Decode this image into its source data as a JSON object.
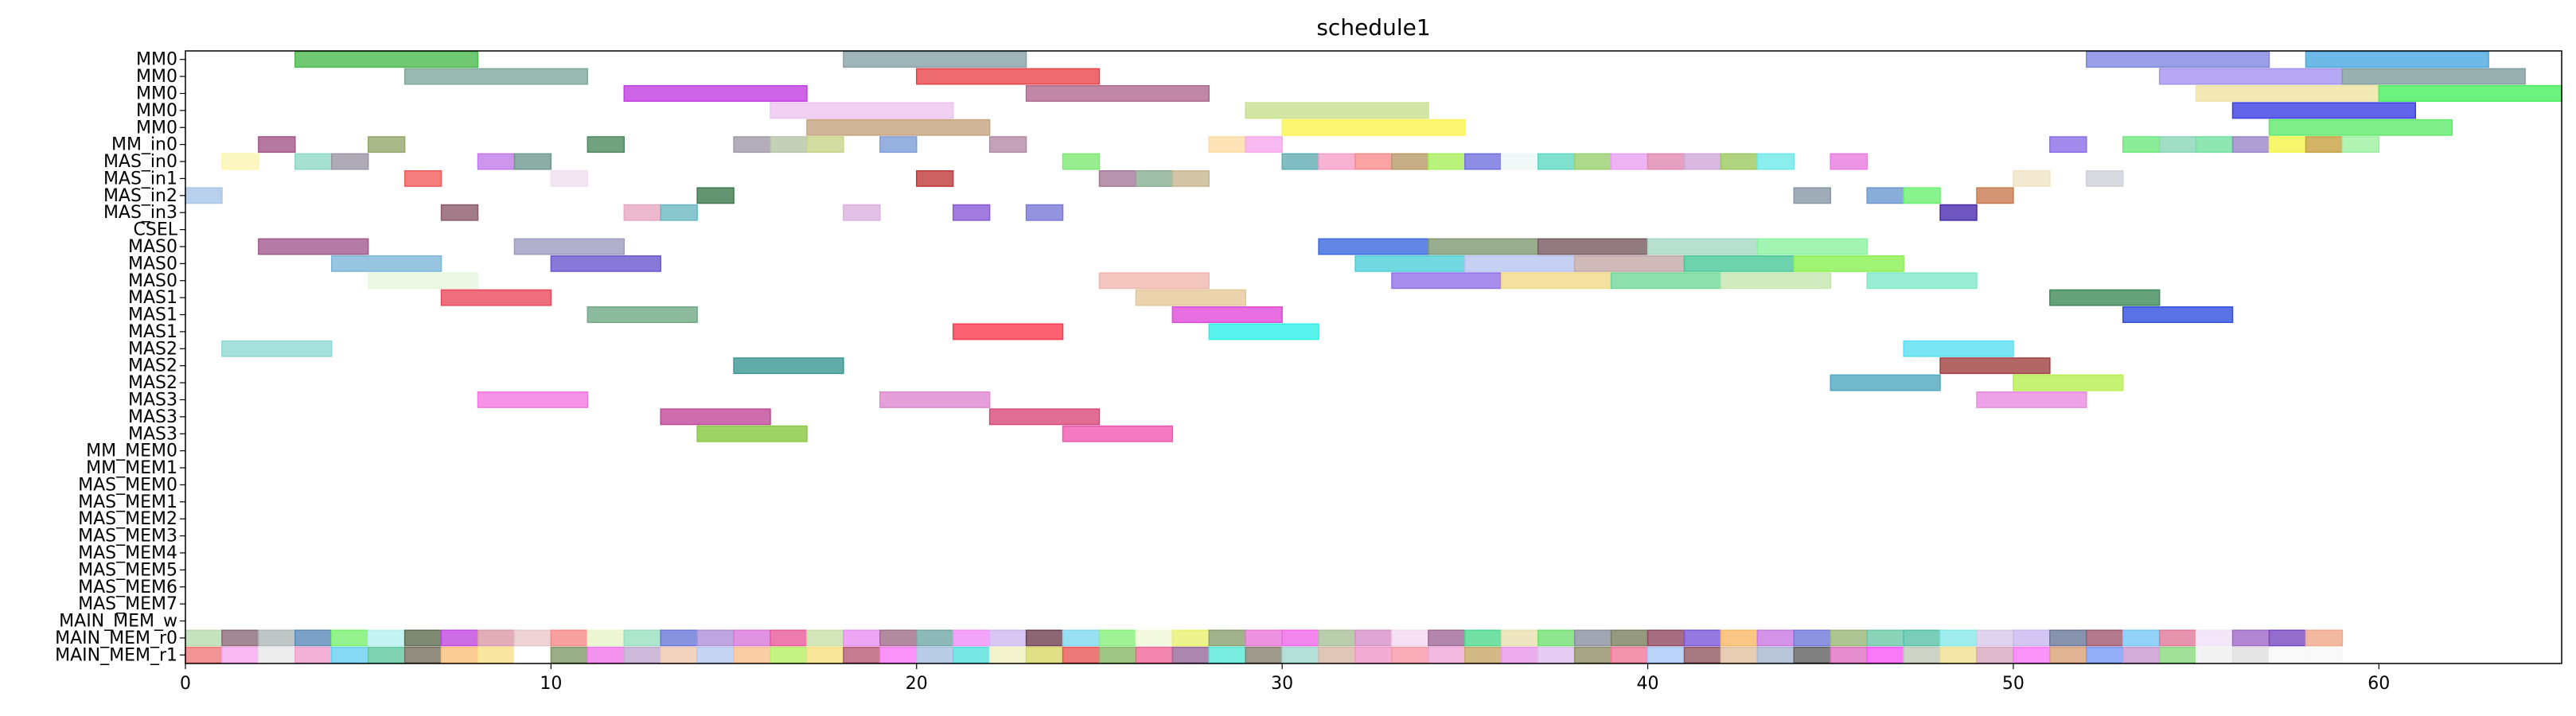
{
  "chart_data": {
    "type": "gantt",
    "title": "schedule1",
    "xlim": [
      0,
      65
    ],
    "x_ticks": [
      0,
      10,
      20,
      30,
      40,
      50,
      60
    ],
    "rows": [
      "MM0",
      "MM0",
      "MM0",
      "MM0",
      "MM0",
      "MM_in0",
      "MAS_in0",
      "MAS_in1",
      "MAS_in2",
      "MAS_in3",
      "CSEL",
      "MAS0",
      "MAS0",
      "MAS0",
      "MAS1",
      "MAS1",
      "MAS1",
      "MAS2",
      "MAS2",
      "MAS2",
      "MAS3",
      "MAS3",
      "MAS3",
      "MM_MEM0",
      "MM_MEM1",
      "MAS_MEM0",
      "MAS_MEM1",
      "MAS_MEM2",
      "MAS_MEM3",
      "MAS_MEM4",
      "MAS_MEM5",
      "MAS_MEM6",
      "MAS_MEM7",
      "MAIN_MEM_w",
      "MAIN_MEM_r0",
      "MAIN_MEM_r1"
    ],
    "tasks": [
      {
        "row": 0,
        "start": 3,
        "end": 8,
        "color": "#4cba4f"
      },
      {
        "row": 0,
        "start": 18,
        "end": 23,
        "color": "#88a2a8"
      },
      {
        "row": 0,
        "start": 52,
        "end": 57,
        "color": "#7f86e0"
      },
      {
        "row": 0,
        "start": 58,
        "end": 63,
        "color": "#4aa8e0"
      },
      {
        "row": 1,
        "start": 6,
        "end": 11,
        "color": "#7fa89c"
      },
      {
        "row": 1,
        "start": 20,
        "end": 25,
        "color": "#e8464a"
      },
      {
        "row": 1,
        "start": 54,
        "end": 59,
        "color": "#a592f0"
      },
      {
        "row": 1,
        "start": 59,
        "end": 64,
        "color": "#7f9c9c"
      },
      {
        "row": 2,
        "start": 12,
        "end": 17,
        "color": "#c03ee0"
      },
      {
        "row": 2,
        "start": 23,
        "end": 28,
        "color": "#b06a90"
      },
      {
        "row": 2,
        "start": 55,
        "end": 60,
        "color": "#efe3a2"
      },
      {
        "row": 2,
        "start": 60,
        "end": 65,
        "color": "#47f05f"
      },
      {
        "row": 3,
        "start": 16,
        "end": 21,
        "color": "#ecc4f0"
      },
      {
        "row": 3,
        "start": 29,
        "end": 34,
        "color": "#c8e08e"
      },
      {
        "row": 3,
        "start": 56,
        "end": 61,
        "color": "#3b3ee3"
      },
      {
        "row": 4,
        "start": 17,
        "end": 22,
        "color": "#c6a37f"
      },
      {
        "row": 4,
        "start": 30,
        "end": 35,
        "color": "#fbf550"
      },
      {
        "row": 4,
        "start": 57,
        "end": 62,
        "color": "#5fea6a"
      },
      {
        "row": 5,
        "start": 2,
        "end": 3,
        "color": "#a3568a"
      },
      {
        "row": 5,
        "start": 5,
        "end": 6,
        "color": "#94a86c"
      },
      {
        "row": 5,
        "start": 11,
        "end": 12,
        "color": "#4f8a60"
      },
      {
        "row": 5,
        "start": 15,
        "end": 16,
        "color": "#a09aa8"
      },
      {
        "row": 5,
        "start": 16,
        "end": 17,
        "color": "#b6c4a8"
      },
      {
        "row": 5,
        "start": 17,
        "end": 18,
        "color": "#c8d48a"
      },
      {
        "row": 5,
        "start": 19,
        "end": 20,
        "color": "#7c9ed8"
      },
      {
        "row": 5,
        "start": 22,
        "end": 23,
        "color": "#b48aa4"
      },
      {
        "row": 5,
        "start": 28,
        "end": 29,
        "color": "#fcdca4"
      },
      {
        "row": 5,
        "start": 29,
        "end": 30,
        "color": "#f5a8ec"
      },
      {
        "row": 5,
        "start": 51,
        "end": 52,
        "color": "#8a6ee8"
      },
      {
        "row": 5,
        "start": 53,
        "end": 54,
        "color": "#6fe880"
      },
      {
        "row": 5,
        "start": 54,
        "end": 55,
        "color": "#8ad6b8"
      },
      {
        "row": 5,
        "start": 55,
        "end": 56,
        "color": "#73e0a0"
      },
      {
        "row": 5,
        "start": 56,
        "end": 57,
        "color": "#9a86c8"
      },
      {
        "row": 5,
        "start": 57,
        "end": 58,
        "color": "#f5f54a"
      },
      {
        "row": 5,
        "start": 58,
        "end": 59,
        "color": "#c8a040"
      },
      {
        "row": 5,
        "start": 59,
        "end": 60,
        "color": "#9ef0a0"
      },
      {
        "row": 6,
        "start": 1,
        "end": 2,
        "color": "#fbf5b0"
      },
      {
        "row": 6,
        "start": 3,
        "end": 4,
        "color": "#8fd8c4"
      },
      {
        "row": 6,
        "start": 4,
        "end": 5,
        "color": "#9b96a4"
      },
      {
        "row": 6,
        "start": 8,
        "end": 9,
        "color": "#c27ae8"
      },
      {
        "row": 6,
        "start": 9,
        "end": 10,
        "color": "#6f9890"
      },
      {
        "row": 6,
        "start": 24,
        "end": 25,
        "color": "#7ee872"
      },
      {
        "row": 6,
        "start": 30,
        "end": 31,
        "color": "#60aeb4"
      },
      {
        "row": 6,
        "start": 31,
        "end": 32,
        "color": "#f6a0c8"
      },
      {
        "row": 6,
        "start": 32,
        "end": 33,
        "color": "#f88c8c"
      },
      {
        "row": 6,
        "start": 33,
        "end": 34,
        "color": "#b89a68"
      },
      {
        "row": 6,
        "start": 34,
        "end": 35,
        "color": "#a8f05a"
      },
      {
        "row": 6,
        "start": 35,
        "end": 36,
        "color": "#7070e0"
      },
      {
        "row": 6,
        "start": 36,
        "end": 37,
        "color": "#eef6f6"
      },
      {
        "row": 6,
        "start": 37,
        "end": 38,
        "color": "#5ed8c0"
      },
      {
        "row": 6,
        "start": 38,
        "end": 39,
        "color": "#98d070"
      },
      {
        "row": 6,
        "start": 39,
        "end": 40,
        "color": "#e8a0f0"
      },
      {
        "row": 6,
        "start": 40,
        "end": 41,
        "color": "#e08ab0"
      },
      {
        "row": 6,
        "start": 41,
        "end": 42,
        "color": "#d0a8d8"
      },
      {
        "row": 6,
        "start": 42,
        "end": 43,
        "color": "#9cc860"
      },
      {
        "row": 6,
        "start": 43,
        "end": 44,
        "color": "#6ee8e8"
      },
      {
        "row": 6,
        "start": 45,
        "end": 46,
        "color": "#ea7ce0"
      },
      {
        "row": 7,
        "start": 6,
        "end": 7,
        "color": "#f45c5c"
      },
      {
        "row": 7,
        "start": 10,
        "end": 11,
        "color": "#f0e0f0"
      },
      {
        "row": 7,
        "start": 20,
        "end": 21,
        "color": "#c03a3a"
      },
      {
        "row": 7,
        "start": 25,
        "end": 26,
        "color": "#a67898"
      },
      {
        "row": 7,
        "start": 26,
        "end": 27,
        "color": "#8aae92"
      },
      {
        "row": 7,
        "start": 27,
        "end": 28,
        "color": "#c8b890"
      },
      {
        "row": 7,
        "start": 50,
        "end": 51,
        "color": "#f0e2c4"
      },
      {
        "row": 7,
        "start": 52,
        "end": 53,
        "color": "#d0d0d8"
      },
      {
        "row": 8,
        "start": 0,
        "end": 1,
        "color": "#a8c4e8"
      },
      {
        "row": 8,
        "start": 14,
        "end": 15,
        "color": "#3d7a50"
      },
      {
        "row": 8,
        "start": 44,
        "end": 45,
        "color": "#8898a8"
      },
      {
        "row": 8,
        "start": 46,
        "end": 47,
        "color": "#6c98d0"
      },
      {
        "row": 8,
        "start": 47,
        "end": 48,
        "color": "#6cf070"
      },
      {
        "row": 8,
        "start": 49,
        "end": 50,
        "color": "#c87a50"
      },
      {
        "row": 9,
        "start": 7,
        "end": 8,
        "color": "#8c5a6c"
      },
      {
        "row": 9,
        "start": 12,
        "end": 13,
        "color": "#e8a8c0"
      },
      {
        "row": 9,
        "start": 13,
        "end": 14,
        "color": "#6cb8c0"
      },
      {
        "row": 9,
        "start": 18,
        "end": 19,
        "color": "#dcb0e0"
      },
      {
        "row": 9,
        "start": 21,
        "end": 22,
        "color": "#8a5ad8"
      },
      {
        "row": 9,
        "start": 23,
        "end": 24,
        "color": "#7878d8"
      },
      {
        "row": 9,
        "start": 48,
        "end": 49,
        "color": "#4a2ab0"
      },
      {
        "row": 11,
        "start": 2,
        "end": 5,
        "color": "#a05a8e"
      },
      {
        "row": 11,
        "start": 9,
        "end": 12,
        "color": "#9c9cc0"
      },
      {
        "row": 11,
        "start": 31,
        "end": 34,
        "color": "#3a68e0"
      },
      {
        "row": 11,
        "start": 34,
        "end": 37,
        "color": "#7f9872"
      },
      {
        "row": 11,
        "start": 37,
        "end": 40,
        "color": "#765a62"
      },
      {
        "row": 11,
        "start": 40,
        "end": 43,
        "color": "#a6d8c4"
      },
      {
        "row": 11,
        "start": 43,
        "end": 46,
        "color": "#8cf2a0"
      },
      {
        "row": 12,
        "start": 4,
        "end": 7,
        "color": "#7eb8d8"
      },
      {
        "row": 12,
        "start": 10,
        "end": 13,
        "color": "#6a58d0"
      },
      {
        "row": 12,
        "start": 32,
        "end": 35,
        "color": "#50d0d8"
      },
      {
        "row": 12,
        "start": 35,
        "end": 38,
        "color": "#b8c4f0"
      },
      {
        "row": 12,
        "start": 38,
        "end": 41,
        "color": "#c4a8a8"
      },
      {
        "row": 12,
        "start": 41,
        "end": 44,
        "color": "#48c898"
      },
      {
        "row": 12,
        "start": 44,
        "end": 47,
        "color": "#88f050"
      },
      {
        "row": 13,
        "start": 5,
        "end": 8,
        "color": "#e8f8e0"
      },
      {
        "row": 13,
        "start": 25,
        "end": 28,
        "color": "#f0b8b0"
      },
      {
        "row": 13,
        "start": 33,
        "end": 36,
        "color": "#9070e8"
      },
      {
        "row": 13,
        "start": 36,
        "end": 39,
        "color": "#f2d888"
      },
      {
        "row": 13,
        "start": 39,
        "end": 42,
        "color": "#70d898"
      },
      {
        "row": 13,
        "start": 42,
        "end": 45,
        "color": "#c4e6b0"
      },
      {
        "row": 13,
        "start": 46,
        "end": 49,
        "color": "#80e8c8"
      },
      {
        "row": 14,
        "start": 7,
        "end": 10,
        "color": "#ea4a5c"
      },
      {
        "row": 14,
        "start": 26,
        "end": 29,
        "color": "#e6c898"
      },
      {
        "row": 14,
        "start": 51,
        "end": 54,
        "color": "#3f8a5a"
      },
      {
        "row": 15,
        "start": 11,
        "end": 14,
        "color": "#70aa84"
      },
      {
        "row": 15,
        "start": 27,
        "end": 30,
        "color": "#e04ad8"
      },
      {
        "row": 15,
        "start": 53,
        "end": 56,
        "color": "#3050e0"
      },
      {
        "row": 16,
        "start": 21,
        "end": 24,
        "color": "#fa3a50"
      },
      {
        "row": 16,
        "start": 28,
        "end": 31,
        "color": "#30f0e8"
      },
      {
        "row": 17,
        "start": 1,
        "end": 4,
        "color": "#90d8d4"
      },
      {
        "row": 17,
        "start": 47,
        "end": 50,
        "color": "#5ae0f0"
      },
      {
        "row": 18,
        "start": 15,
        "end": 18,
        "color": "#3a9694"
      },
      {
        "row": 18,
        "start": 48,
        "end": 51,
        "color": "#a04040"
      },
      {
        "row": 19,
        "start": 45,
        "end": 48,
        "color": "#50a8c0"
      },
      {
        "row": 19,
        "start": 50,
        "end": 53,
        "color": "#b8f050"
      },
      {
        "row": 20,
        "start": 8,
        "end": 11,
        "color": "#f278e0"
      },
      {
        "row": 20,
        "start": 19,
        "end": 22,
        "color": "#e088d0"
      },
      {
        "row": 20,
        "start": 49,
        "end": 52,
        "color": "#e88ae0"
      },
      {
        "row": 21,
        "start": 13,
        "end": 16,
        "color": "#c04898"
      },
      {
        "row": 21,
        "start": 22,
        "end": 25,
        "color": "#d84878"
      },
      {
        "row": 22,
        "start": 14,
        "end": 17,
        "color": "#88c840"
      },
      {
        "row": 22,
        "start": 24,
        "end": 27,
        "color": "#f058b0"
      }
    ],
    "mem_rows": {
      "row_w": 33,
      "row_r0": 34,
      "row_r1": 35,
      "r0_colors": [
        "#b8dcb0",
        "#8a6a78",
        "#b0b8b8",
        "#5a8ab8",
        "#7af070",
        "#b8f0f0",
        "#5c6c50",
        "#c048e0",
        "#d898a8",
        "#e8c8c8",
        "#f68a8a",
        "#e8f4c8",
        "#98e0c0",
        "#6a78d8",
        "#b090d8",
        "#d878d8",
        "#e85a98",
        "#c8e0a8",
        "#e890f0",
        "#a06e88",
        "#70a8a8",
        "#f090f8",
        "#d0b8f0",
        "#704050",
        "#80d8f0",
        "#88f07a",
        "#f0f8d8",
        "#e8f070",
        "#88a070",
        "#e878d8",
        "#f068e8",
        "#a8c098",
        "#d890c8",
        "#f4d8f0",
        "#a06898",
        "#50d890",
        "#e8e0b0",
        "#70e070",
        "#8890a0",
        "#7a8060",
        "#904860",
        "#7a58d8",
        "#f8b868",
        "#c878e0",
        "#7078d8",
        "#98b878",
        "#6ec8a8",
        "#58c0a8",
        "#88e8e8",
        "#d8c8e8",
        "#c8b8f0",
        "#6a7898",
        "#a05870",
        "#78c8f8",
        "#e07898",
        "#f0e0f8",
        "#a068c8",
        "#7848c0",
        "#f0a888"
      ],
      "r1_colors": [
        "#f07878",
        "#f8a8f0",
        "#e8e8e8",
        "#f0a0d0",
        "#68d0f0",
        "#60c8a0",
        "#787060",
        "#f8c078",
        "#f8e088",
        "#ffffff",
        "#809868",
        "#f078e8",
        "#c0a8d0",
        "#f0c8b0",
        "#b8c8f0",
        "#f8c090",
        "#b8f068",
        "#f8e080",
        "#b85a78",
        "#f878f8",
        "#a8c0e0",
        "#58e0e0",
        "#f0f0c0",
        "#d8d868",
        "#e85858",
        "#88b868",
        "#f06898",
        "#986898",
        "#58e8d8",
        "#888070",
        "#a0d8d0",
        "#d8b8a8",
        "#f098c8",
        "#f898a8",
        "#f0a8d8",
        "#c8a868",
        "#e898e8",
        "#e0c0f0",
        "#909068",
        "#f07898",
        "#a8c8f8",
        "#905860",
        "#e0c0a0",
        "#a8b8d0",
        "#606060",
        "#e070c0",
        "#f858f8",
        "#c0c8b8",
        "#f0e090",
        "#d8a8c0",
        "#f878f8",
        "#d8a078",
        "#7898f8",
        "#c898d0",
        "#88d880",
        "#f0f0f0",
        "#e0e0e0",
        "#f8f8f8",
        "#f8f8f8"
      ]
    }
  }
}
